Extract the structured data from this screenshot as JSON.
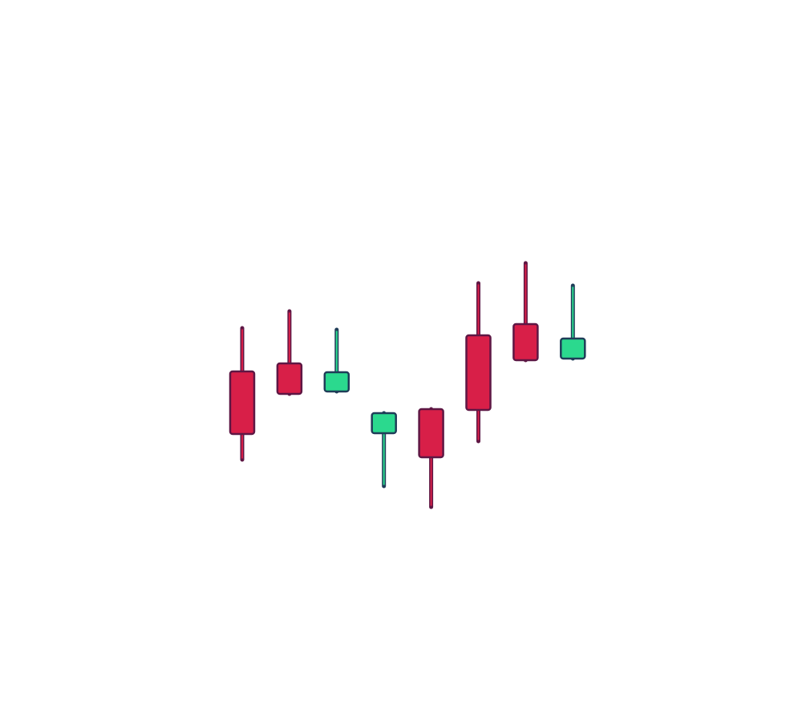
{
  "chart_data": {
    "type": "candlestick",
    "title": "",
    "xlabel": "",
    "ylabel": "",
    "axes_visible": false,
    "grid": false,
    "legend": "none",
    "colors": {
      "bearish_body": "#d81f48",
      "bearish_outline": "#5e1744",
      "bullish_body": "#2bd98e",
      "bullish_outline": "#1f3d58"
    },
    "candles": [
      {
        "index": 1,
        "direction": "bearish",
        "open": 43.7,
        "close": 35.9,
        "high": 49.1,
        "low": 32.7
      },
      {
        "index": 2,
        "direction": "bearish",
        "open": 44.7,
        "close": 40.9,
        "high": 51.2,
        "low": 40.9
      },
      {
        "index": 3,
        "direction": "bullish",
        "open": 41.2,
        "close": 43.6,
        "high": 48.9,
        "low": 41.2
      },
      {
        "index": 4,
        "direction": "bullish",
        "open": 36.0,
        "close": 38.5,
        "high": 38.5,
        "low": 29.4
      },
      {
        "index": 5,
        "direction": "bearish",
        "open": 39.0,
        "close": 33.0,
        "high": 39.0,
        "low": 26.8
      },
      {
        "index": 6,
        "direction": "bearish",
        "open": 48.2,
        "close": 38.9,
        "high": 54.7,
        "low": 35.0
      },
      {
        "index": 7,
        "direction": "bearish",
        "open": 49.6,
        "close": 45.1,
        "high": 57.2,
        "low": 45.1
      },
      {
        "index": 8,
        "direction": "bullish",
        "open": 45.3,
        "close": 47.8,
        "high": 54.4,
        "low": 45.3
      }
    ]
  }
}
